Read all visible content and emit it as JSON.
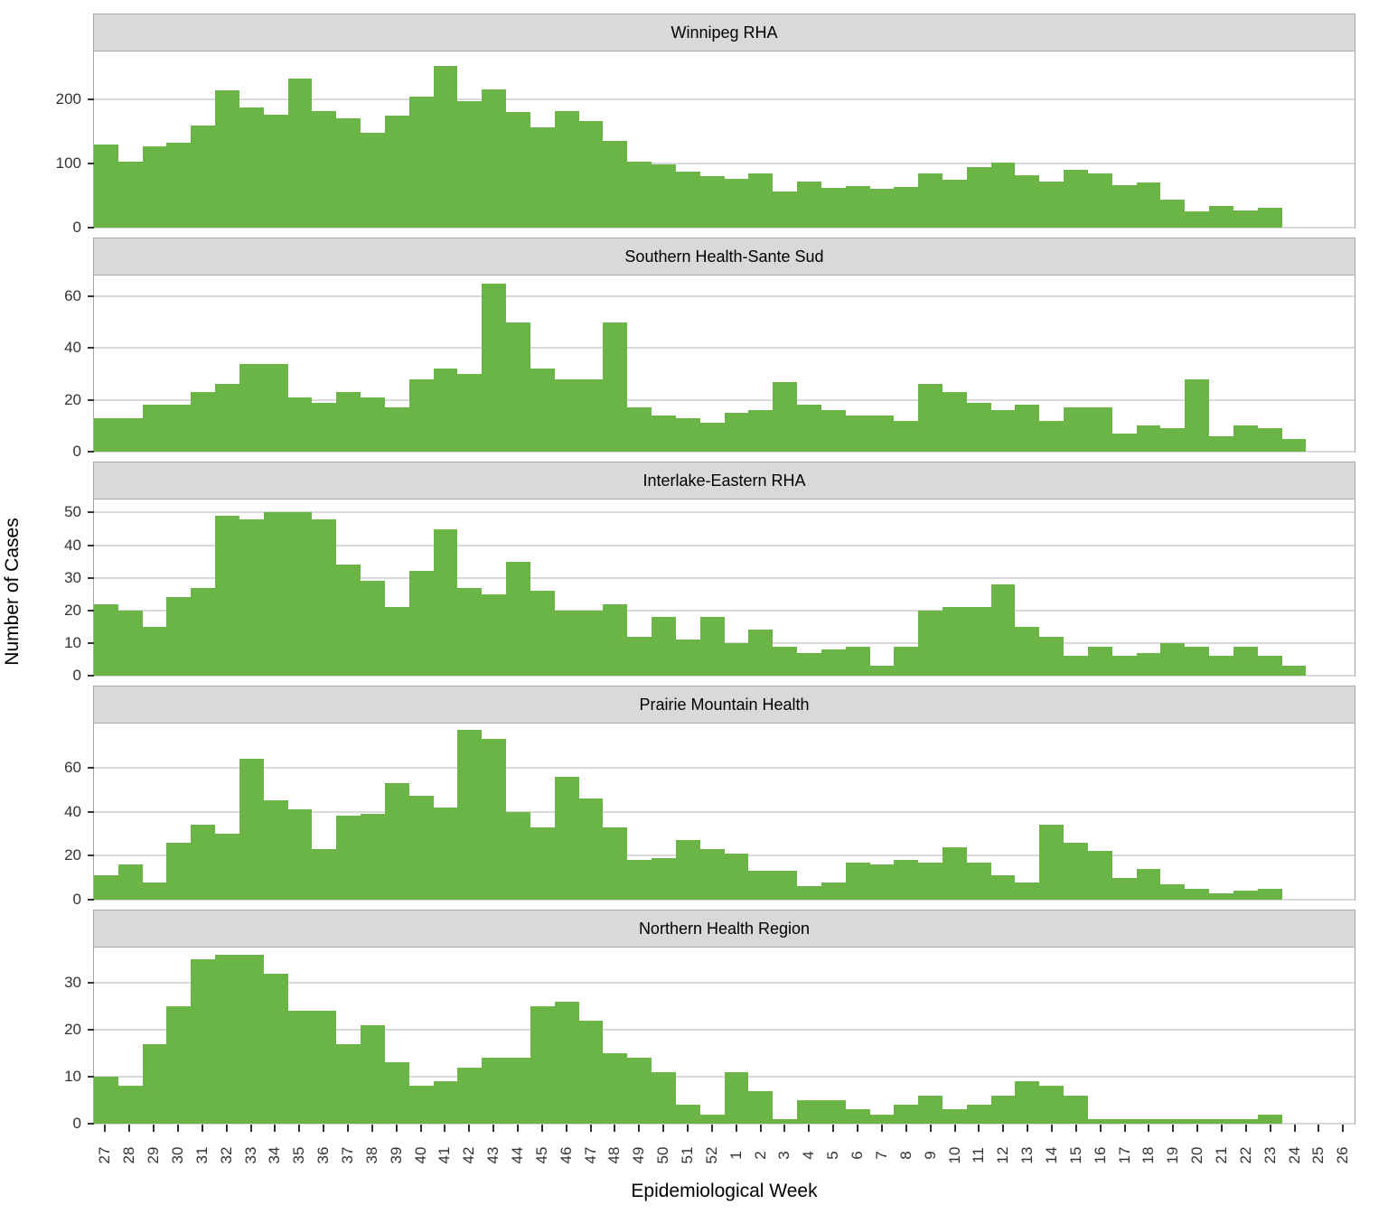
{
  "chart_data": {
    "type": "bar",
    "title": "",
    "xlabel": "Epidemiological Week",
    "ylabel": "Number of Cases",
    "legend_position": "none",
    "grid": "major-horizontal",
    "bar_color": "#6BB546",
    "gridline_color": "#d9d9d9",
    "strip_background": "#d9d9d9",
    "panel_border_color": "#a6a6a6",
    "categories": [
      "27",
      "28",
      "29",
      "30",
      "31",
      "32",
      "33",
      "34",
      "35",
      "36",
      "37",
      "38",
      "39",
      "40",
      "41",
      "42",
      "43",
      "44",
      "45",
      "46",
      "47",
      "48",
      "49",
      "50",
      "51",
      "52",
      "1",
      "2",
      "3",
      "4",
      "5",
      "6",
      "7",
      "8",
      "9",
      "10",
      "11",
      "12",
      "13",
      "14",
      "15",
      "16",
      "17",
      "18",
      "19",
      "20",
      "21",
      "22",
      "23",
      "24",
      "25",
      "26"
    ],
    "facets": [
      {
        "title": "Winnipeg RHA",
        "yticks": [
          0,
          100,
          200
        ],
        "ymax": 275,
        "values": [
          130,
          103,
          127,
          132,
          160,
          214,
          188,
          176,
          233,
          182,
          171,
          148,
          175,
          205,
          253,
          197,
          216,
          180,
          156,
          182,
          166,
          135,
          103,
          99,
          88,
          80,
          76,
          84,
          57,
          72,
          62,
          65,
          60,
          63,
          85,
          75,
          95,
          102,
          82,
          72,
          90,
          84,
          66,
          70,
          44,
          26,
          34,
          27,
          31,
          0,
          0,
          0
        ]
      },
      {
        "title": "Southern Health-Sante Sud",
        "yticks": [
          0,
          20,
          40,
          60
        ],
        "ymax": 68,
        "values": [
          13,
          13,
          18,
          18,
          23,
          26,
          34,
          34,
          21,
          19,
          23,
          21,
          17,
          28,
          32,
          30,
          65,
          50,
          32,
          28,
          28,
          50,
          17,
          14,
          13,
          11,
          15,
          16,
          27,
          18,
          16,
          14,
          14,
          12,
          26,
          23,
          19,
          16,
          18,
          12,
          17,
          17,
          7,
          10,
          9,
          28,
          6,
          10,
          9,
          5,
          0,
          0
        ]
      },
      {
        "title": "Interlake-Eastern RHA",
        "yticks": [
          0,
          10,
          20,
          30,
          40,
          50
        ],
        "ymax": 54,
        "values": [
          22,
          20,
          15,
          24,
          27,
          49,
          48,
          50,
          50,
          48,
          34,
          29,
          21,
          32,
          45,
          27,
          25,
          35,
          26,
          20,
          20,
          22,
          12,
          18,
          11,
          18,
          10,
          14,
          9,
          7,
          8,
          9,
          3,
          9,
          20,
          21,
          21,
          28,
          15,
          12,
          6,
          9,
          6,
          7,
          10,
          9,
          6,
          9,
          6,
          3,
          0,
          0
        ]
      },
      {
        "title": "Prairie Mountain Health",
        "yticks": [
          0,
          20,
          40,
          60
        ],
        "ymax": 80,
        "values": [
          11,
          16,
          8,
          26,
          34,
          30,
          64,
          45,
          41,
          23,
          38,
          39,
          53,
          47,
          42,
          77,
          73,
          40,
          33,
          56,
          46,
          33,
          18,
          19,
          27,
          23,
          21,
          13,
          13,
          6,
          8,
          17,
          16,
          18,
          17,
          24,
          17,
          11,
          8,
          34,
          26,
          22,
          10,
          14,
          7,
          5,
          3,
          4,
          5,
          0,
          0,
          0
        ]
      },
      {
        "title": "Northern Health Region",
        "yticks": [
          0,
          10,
          20,
          30
        ],
        "ymax": 37.5,
        "values": [
          10,
          8,
          17,
          25,
          35,
          36,
          36,
          32,
          24,
          24,
          17,
          21,
          13,
          8,
          9,
          12,
          14,
          14,
          25,
          26,
          22,
          15,
          14,
          11,
          4,
          2,
          11,
          7,
          1,
          5,
          5,
          3,
          2,
          4,
          6,
          3,
          4,
          6,
          9,
          8,
          6,
          1,
          1,
          1,
          1,
          1,
          1,
          1,
          2,
          0,
          0,
          0
        ]
      }
    ]
  }
}
